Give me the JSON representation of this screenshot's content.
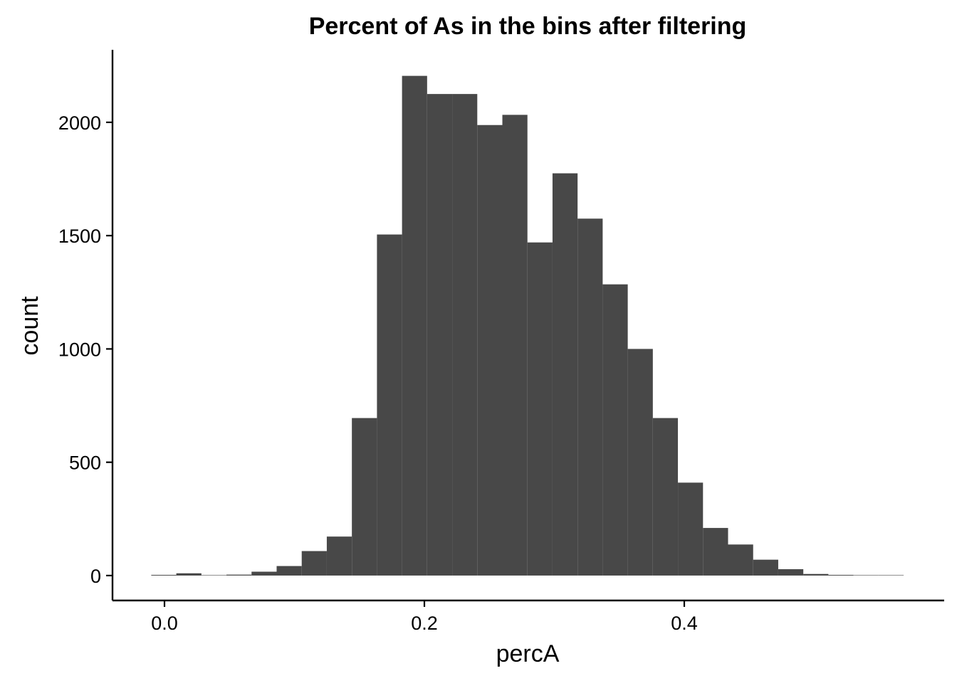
{
  "chart_data": {
    "type": "bar",
    "title": "Percent of As in the bins after filtering",
    "xlabel": "percA",
    "ylabel": "count",
    "bin_width": 0.0193,
    "bins": [
      {
        "x0": -0.0102,
        "x1": 0.0091,
        "count": 3
      },
      {
        "x0": 0.0091,
        "x1": 0.0284,
        "count": 10
      },
      {
        "x0": 0.0284,
        "x1": 0.0477,
        "count": 1
      },
      {
        "x0": 0.0477,
        "x1": 0.067,
        "count": 4
      },
      {
        "x0": 0.067,
        "x1": 0.0863,
        "count": 17
      },
      {
        "x0": 0.0863,
        "x1": 0.1056,
        "count": 42
      },
      {
        "x0": 0.1056,
        "x1": 0.1249,
        "count": 108
      },
      {
        "x0": 0.1249,
        "x1": 0.1442,
        "count": 172
      },
      {
        "x0": 0.1442,
        "x1": 0.1635,
        "count": 695
      },
      {
        "x0": 0.1635,
        "x1": 0.1828,
        "count": 1505
      },
      {
        "x0": 0.1828,
        "x1": 0.2021,
        "count": 2205
      },
      {
        "x0": 0.2021,
        "x1": 0.2214,
        "count": 2125
      },
      {
        "x0": 0.2214,
        "x1": 0.2407,
        "count": 2125
      },
      {
        "x0": 0.2407,
        "x1": 0.26,
        "count": 1988
      },
      {
        "x0": 0.26,
        "x1": 0.2793,
        "count": 2033
      },
      {
        "x0": 0.2793,
        "x1": 0.2986,
        "count": 1470
      },
      {
        "x0": 0.2986,
        "x1": 0.3179,
        "count": 1775
      },
      {
        "x0": 0.3179,
        "x1": 0.3372,
        "count": 1575
      },
      {
        "x0": 0.3372,
        "x1": 0.3565,
        "count": 1285
      },
      {
        "x0": 0.3565,
        "x1": 0.3758,
        "count": 1000
      },
      {
        "x0": 0.3758,
        "x1": 0.3951,
        "count": 695
      },
      {
        "x0": 0.3951,
        "x1": 0.4144,
        "count": 410
      },
      {
        "x0": 0.4144,
        "x1": 0.4337,
        "count": 210
      },
      {
        "x0": 0.4337,
        "x1": 0.453,
        "count": 137
      },
      {
        "x0": 0.453,
        "x1": 0.4723,
        "count": 70
      },
      {
        "x0": 0.4723,
        "x1": 0.4916,
        "count": 28
      },
      {
        "x0": 0.4916,
        "x1": 0.5109,
        "count": 7
      },
      {
        "x0": 0.5109,
        "x1": 0.5302,
        "count": 3
      },
      {
        "x0": 0.5302,
        "x1": 0.5495,
        "count": 1
      },
      {
        "x0": 0.5495,
        "x1": 0.5688,
        "count": 1
      }
    ],
    "x_ticks": [
      {
        "value": 0.0,
        "label": "0.0"
      },
      {
        "value": 0.2,
        "label": "0.2"
      },
      {
        "value": 0.4,
        "label": "0.4"
      }
    ],
    "y_ticks": [
      {
        "value": 0,
        "label": "0"
      },
      {
        "value": 500,
        "label": "500"
      },
      {
        "value": 1000,
        "label": "1000"
      },
      {
        "value": 1500,
        "label": "1500"
      },
      {
        "value": 2000,
        "label": "2000"
      }
    ],
    "xlim": [
      -0.04,
      0.6
    ],
    "ylim": [
      -110,
      2320
    ],
    "bar_color": "#484848",
    "axis_color": "#000000",
    "grid": false,
    "legend": "none"
  }
}
